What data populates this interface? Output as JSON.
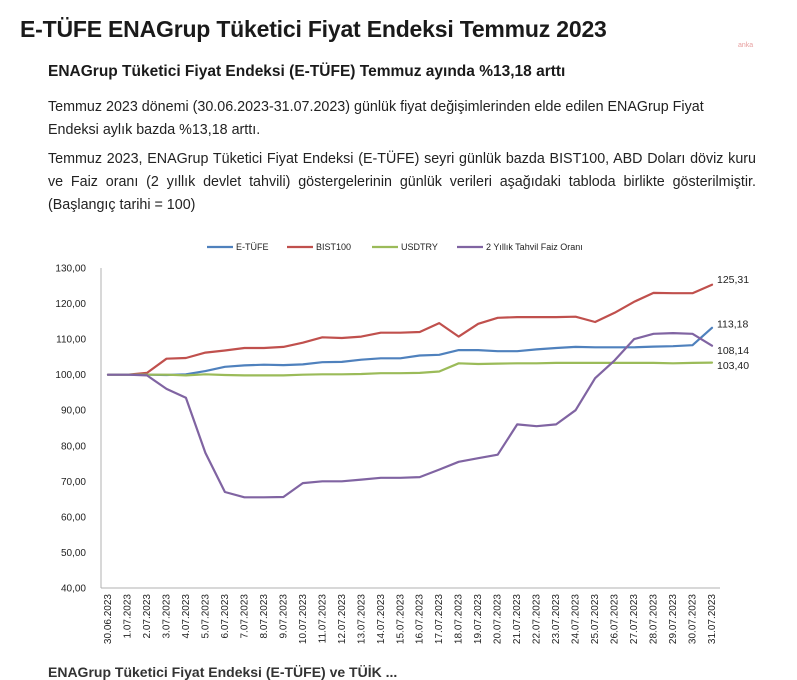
{
  "header": {
    "title": "E-TÜFE ENAGrup Tüketici Fiyat Endeksi Temmuz 2023",
    "watermark": "anka"
  },
  "subtitle": "ENAGrup Tüketici Fiyat Endeksi (E-TÜFE) Temmuz ayında %13,18 arttı",
  "paragraphs": [
    "Temmuz 2023 dönemi (30.06.2023-31.07.2023) günlük fiyat değişimlerinden elde edilen ENAGrup Fiyat Endeksi aylık bazda %13,18 arttı.",
    "Temmuz 2023, ENAGrup Tüketici Fiyat Endeksi (E-TÜFE) seyri günlük bazda BIST100, ABD Doları döviz kuru ve Faiz oranı (2 yıllık devlet tahvili) göstergelerinin günlük verileri aşağıdaki tabloda birlikte gösterilmiştir. (Başlangıç tarihi = 100)"
  ],
  "cutoff_text": "ENAGrup Tüketici Fiyat Endeksi (E-TÜFE) ve TÜİK ... ",
  "chart_data": {
    "type": "line",
    "categories": [
      "30.06.2023",
      "1.07.2023",
      "2.07.2023",
      "3.07.2023",
      "4.07.2023",
      "5.07.2023",
      "6.07.2023",
      "7.07.2023",
      "8.07.2023",
      "9.07.2023",
      "10.07.2023",
      "11.07.2023",
      "12.07.2023",
      "13.07.2023",
      "14.07.2023",
      "15.07.2023",
      "16.07.2023",
      "17.07.2023",
      "18.07.2023",
      "19.07.2023",
      "20.07.2023",
      "21.07.2023",
      "22.07.2023",
      "23.07.2023",
      "24.07.2023",
      "25.07.2023",
      "26.07.2023",
      "27.07.2023",
      "28.07.2023",
      "29.07.2023",
      "30.07.2023",
      "31.07.2023"
    ],
    "ylim": [
      40,
      130
    ],
    "yticks": [
      "40,00",
      "50,00",
      "60,00",
      "70,00",
      "80,00",
      "90,00",
      "100,00",
      "110,00",
      "120,00",
      "130,00"
    ],
    "grid": false,
    "legend_position": "top",
    "series": [
      {
        "name": "E-TÜFE",
        "color": "#4f81bd",
        "end_label": "113,18",
        "values": [
          100,
          100,
          100,
          99.9,
          100.1,
          101,
          102.2,
          102.6,
          102.8,
          102.7,
          102.9,
          103.5,
          103.6,
          104.2,
          104.6,
          104.6,
          105.4,
          105.6,
          106.9,
          106.9,
          106.6,
          106.6,
          107.1,
          107.5,
          107.8,
          107.7,
          107.7,
          107.7,
          107.9,
          108,
          108.3,
          113.18
        ]
      },
      {
        "name": "BIST100",
        "color": "#c0504d",
        "end_label": "125,31",
        "values": [
          100,
          100,
          100.5,
          104.5,
          104.7,
          106.2,
          106.8,
          107.5,
          107.5,
          107.8,
          109,
          110.5,
          110.3,
          110.7,
          111.8,
          111.8,
          112,
          114.5,
          110.7,
          114.3,
          116,
          116.2,
          116.2,
          116.2,
          116.3,
          114.8,
          117.4,
          120.5,
          123,
          122.9,
          122.9,
          125.31
        ]
      },
      {
        "name": "USDTRY",
        "color": "#9bbb59",
        "end_label": "103,40",
        "values": [
          100,
          100,
          100,
          100,
          99.8,
          100.1,
          99.9,
          99.8,
          99.8,
          99.8,
          100,
          100.1,
          100.1,
          100.2,
          100.4,
          100.4,
          100.5,
          100.9,
          103.2,
          103,
          103.1,
          103.2,
          103.2,
          103.3,
          103.3,
          103.3,
          103.3,
          103.3,
          103.3,
          103.2,
          103.3,
          103.4
        ]
      },
      {
        "name": "2 Yıllık Tahvil Faiz Oranı",
        "color": "#8064a2",
        "end_label": "108,14",
        "values": [
          100,
          100,
          99.8,
          96,
          93.5,
          78,
          67,
          65.5,
          65.5,
          65.6,
          69.5,
          70,
          70,
          70.5,
          71,
          71,
          71.2,
          73.3,
          75.5,
          76.5,
          77.5,
          86,
          85.5,
          86,
          90,
          99,
          104,
          110,
          111.5,
          111.7,
          111.5,
          108.14
        ]
      }
    ]
  }
}
